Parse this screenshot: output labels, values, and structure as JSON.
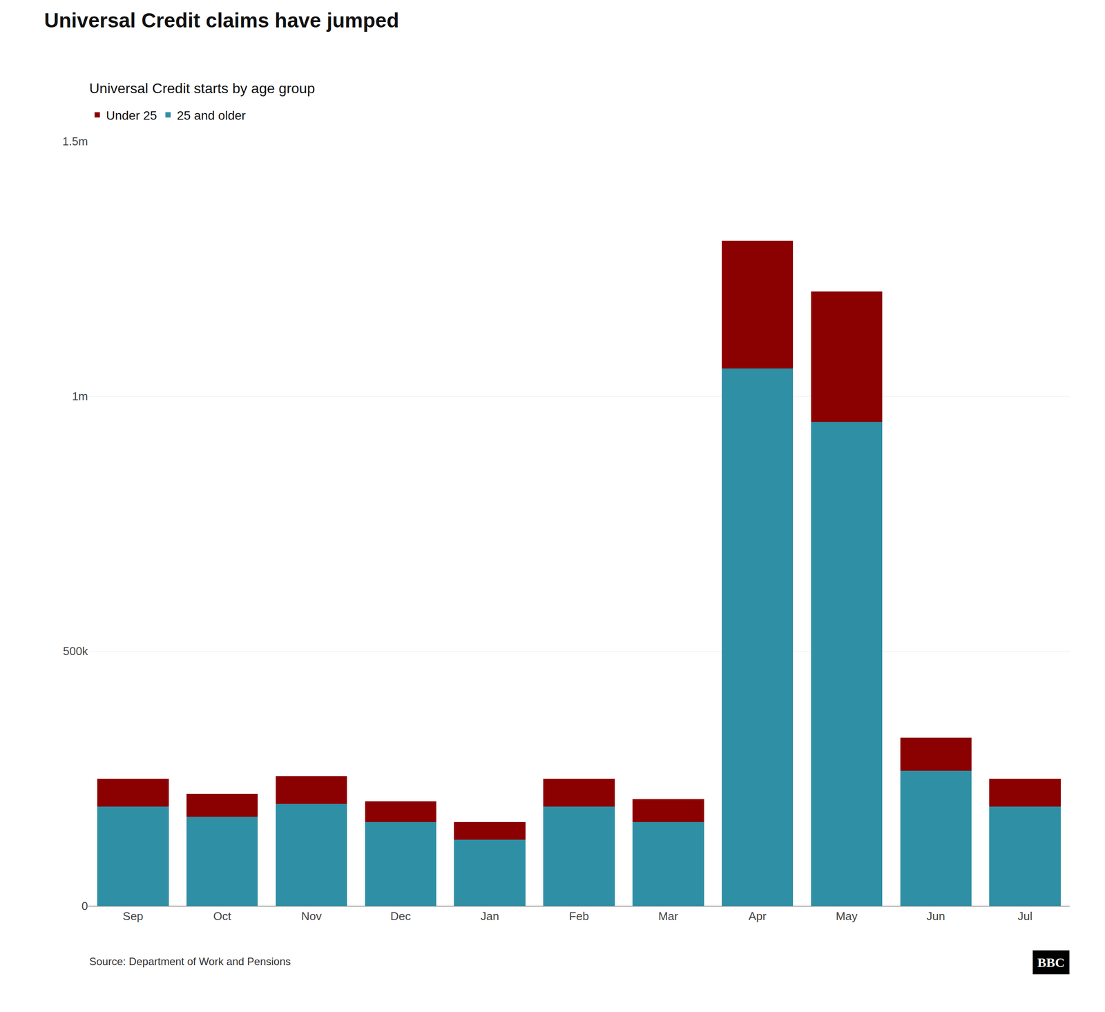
{
  "chart_data": {
    "type": "bar",
    "title": "Universal Credit claims have jumped",
    "subtitle": "Universal Credit starts by age group",
    "source": "Source: Department of Work and Pensions",
    "annotations": [
      "BBC"
    ],
    "categories": [
      "Sep",
      "Oct",
      "Nov",
      "Dec",
      "Jan",
      "Feb",
      "Mar",
      "Apr",
      "May",
      "Jun",
      "Jul"
    ],
    "series": [
      {
        "name": "25 and older",
        "color": "#2E8FA5",
        "values": [
          195000,
          175000,
          200000,
          165000,
          130000,
          195000,
          165000,
          1055000,
          950000,
          265000,
          195000
        ]
      },
      {
        "name": "Under 25",
        "color": "#8B0000",
        "values": [
          55000,
          45000,
          55000,
          40000,
          35000,
          55000,
          45000,
          250000,
          255000,
          65000,
          55000
        ]
      }
    ],
    "stacked": true,
    "ylim": [
      0,
      1500000
    ],
    "yticks": [
      0,
      {
        "value": 500000,
        "label": "500k"
      },
      {
        "value": 1000000,
        "label": "1m"
      },
      {
        "value": 1500000,
        "label": "1.5m"
      }
    ],
    "grid": true
  }
}
